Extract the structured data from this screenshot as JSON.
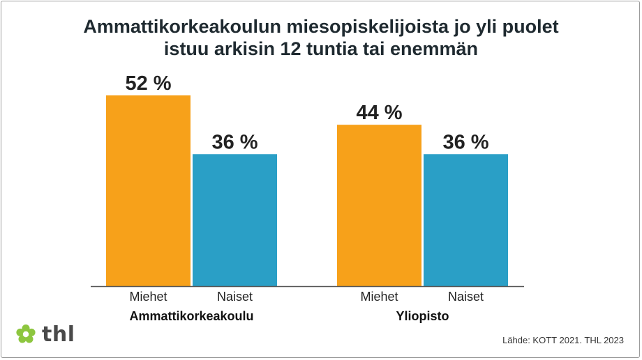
{
  "title_lines": [
    "Ammattikorkeakoulun miesopiskelijoista jo yli puolet",
    "istuu arkisin 12 tuntia tai enemmän"
  ],
  "source": "Lähde: KOTT 2021. THL 2023",
  "logo": {
    "text": "thl",
    "icon": "thl-flower-icon",
    "color": "#8dc63f"
  },
  "colors": {
    "Miehet": "#f7a11a",
    "Naiset": "#2a9fc6"
  },
  "chart_data": {
    "type": "bar",
    "groups": [
      {
        "label": "Ammattikorkeakoulu",
        "bars": [
          {
            "category": "Miehet",
            "value": 52,
            "label": "52 %"
          },
          {
            "category": "Naiset",
            "value": 36,
            "label": "36 %"
          }
        ]
      },
      {
        "label": "Yliopisto",
        "bars": [
          {
            "category": "Miehet",
            "value": 44,
            "label": "44 %"
          },
          {
            "category": "Naiset",
            "value": 36,
            "label": "36 %"
          }
        ]
      }
    ],
    "ylim": [
      0,
      52
    ],
    "grid": false,
    "unit": "%"
  }
}
